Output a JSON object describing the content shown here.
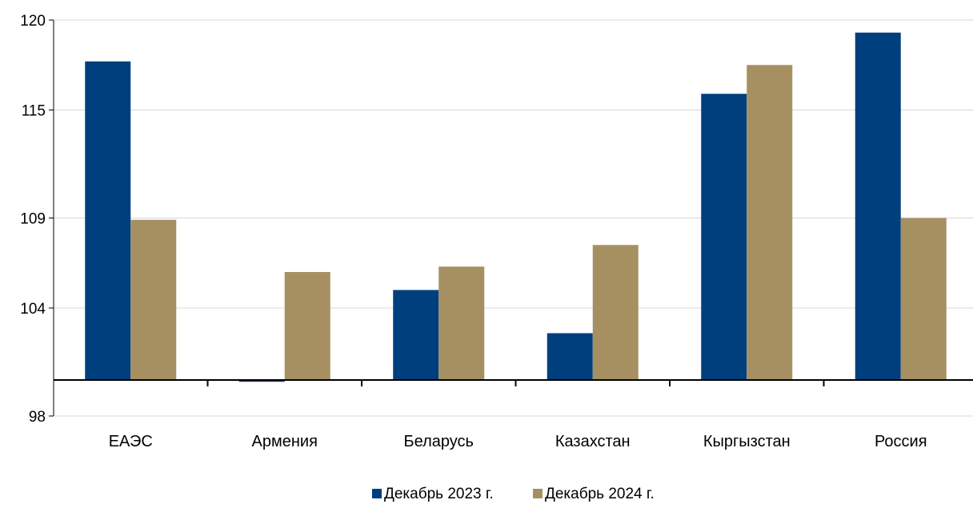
{
  "chart_data": {
    "type": "bar",
    "categories": [
      "ЕАЭС",
      "Армения",
      "Беларусь",
      "Казахстан",
      "Кыргызстан",
      "Россия"
    ],
    "series": [
      {
        "name": "Декабрь 2023 г.",
        "color": "#003f7d",
        "values": [
          117.7,
          99.9,
          105.0,
          102.6,
          115.9,
          119.3
        ]
      },
      {
        "name": "Декабрь 2024 г.",
        "color": "#a69062",
        "values": [
          108.9,
          106.0,
          106.3,
          107.5,
          117.5,
          109.0
        ]
      }
    ],
    "y_ticks": [
      98,
      104,
      109,
      115,
      120
    ],
    "ylim": [
      98,
      120
    ],
    "baseline": 100,
    "grid": true,
    "legend_position": "bottom"
  }
}
